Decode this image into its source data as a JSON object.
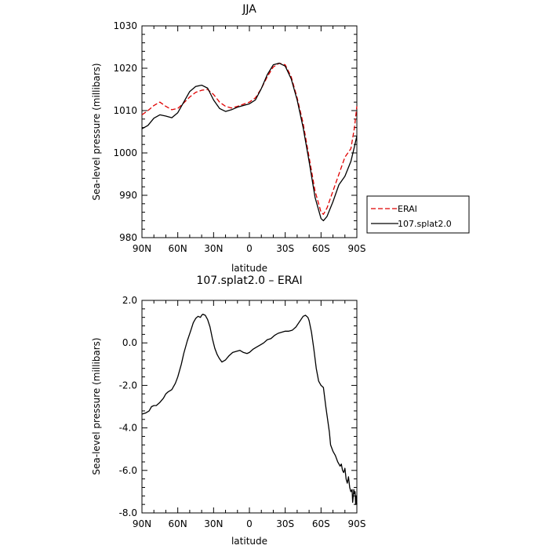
{
  "chart_data": [
    {
      "type": "line",
      "title": "JJA",
      "xlabel": "latitude",
      "ylabel": "Sea-level pressure (millibars)",
      "xlim": [
        -90,
        90
      ],
      "ylim": [
        980,
        1030
      ],
      "x_ticks": [
        -90,
        -60,
        -30,
        0,
        30,
        60,
        90
      ],
      "x_tick_labels": [
        "90N",
        "60N",
        "30N",
        "0",
        "30S",
        "60S",
        "90S"
      ],
      "y_ticks": [
        980,
        990,
        1000,
        1010,
        1020,
        1030
      ],
      "y_tick_labels": [
        "980",
        "990",
        "1000",
        "1010",
        "1020",
        "1030"
      ],
      "legend_position": "right",
      "series": [
        {
          "name": "ERAI",
          "color": "#e00000",
          "dash": "dashed",
          "x": [
            -90,
            -85,
            -80,
            -75,
            -70,
            -65,
            -60,
            -55,
            -50,
            -45,
            -40,
            -35,
            -30,
            -25,
            -20,
            -15,
            -10,
            -5,
            0,
            5,
            10,
            15,
            20,
            25,
            30,
            35,
            40,
            45,
            50,
            55,
            60,
            62,
            65,
            70,
            75,
            80,
            85,
            88,
            90
          ],
          "y": [
            1009,
            1010,
            1011.2,
            1012,
            1011,
            1010.2,
            1010.5,
            1011.8,
            1013.2,
            1014.3,
            1014.8,
            1015,
            1013.8,
            1012,
            1011,
            1010.6,
            1011,
            1011.5,
            1012,
            1013,
            1015.2,
            1018,
            1020.3,
            1021.2,
            1020.8,
            1018,
            1013,
            1007,
            999,
            991,
            986,
            985.5,
            987,
            991,
            995,
            999,
            1001,
            1006,
            1011
          ]
        },
        {
          "name": "107.splat2.0",
          "color": "#000000",
          "dash": "solid",
          "x": [
            -90,
            -85,
            -80,
            -75,
            -70,
            -65,
            -60,
            -55,
            -50,
            -45,
            -40,
            -35,
            -30,
            -25,
            -20,
            -15,
            -10,
            -5,
            0,
            5,
            10,
            15,
            20,
            25,
            30,
            35,
            40,
            45,
            50,
            55,
            60,
            62,
            65,
            70,
            75,
            80,
            85,
            88,
            90
          ],
          "y": [
            1005.7,
            1006.5,
            1008.2,
            1009,
            1008.7,
            1008.3,
            1009.5,
            1012,
            1014.5,
            1015.7,
            1016,
            1015.3,
            1012.5,
            1010.5,
            1009.8,
            1010.2,
            1010.8,
            1011.2,
            1011.6,
            1012.5,
            1015.2,
            1018.5,
            1020.8,
            1021.2,
            1020.5,
            1017.5,
            1012.5,
            1006,
            998,
            989.5,
            984.5,
            984,
            985,
            988.5,
            992.5,
            994.5,
            998,
            1001.5,
            1004
          ]
        }
      ]
    },
    {
      "type": "line",
      "title": "107.splat2.0 – ERAI",
      "xlabel": "latitude",
      "ylabel": "Sea-level pressure (millibars)",
      "xlim": [
        -90,
        90
      ],
      "ylim": [
        -8,
        2
      ],
      "x_ticks": [
        -90,
        -60,
        -30,
        0,
        30,
        60,
        90
      ],
      "x_tick_labels": [
        "90N",
        "60N",
        "30N",
        "0",
        "30S",
        "60S",
        "90S"
      ],
      "y_ticks": [
        -8,
        -6,
        -4,
        -2,
        0,
        2
      ],
      "y_tick_labels": [
        "-8.0",
        "-6.0",
        "-4.0",
        "-2.0",
        "0.0",
        "2.0"
      ],
      "series": [
        {
          "color": "#000000",
          "dash": "solid",
          "x": [
            -90,
            -87,
            -84,
            -82,
            -80,
            -78,
            -75,
            -72,
            -70,
            -68,
            -65,
            -62,
            -60,
            -57,
            -55,
            -52,
            -49,
            -47,
            -45,
            -43,
            -41,
            -40,
            -39,
            -37,
            -35,
            -33,
            -31,
            -29,
            -27,
            -25,
            -23,
            -20,
            -17,
            -14,
            -11,
            -8,
            -5,
            -2,
            0,
            3,
            6,
            9,
            12,
            15,
            18,
            21,
            24,
            27,
            30,
            33,
            36,
            39,
            42,
            45,
            47,
            49,
            50,
            52,
            54,
            56,
            58,
            60,
            62,
            64,
            65,
            67,
            68,
            70,
            72,
            74,
            76,
            77,
            78,
            79,
            80,
            81,
            82,
            83,
            84,
            85,
            86,
            86.5,
            87,
            87.5,
            88,
            88.5,
            89,
            89.5,
            90
          ],
          "y": [
            -3.35,
            -3.3,
            -3.2,
            -3.0,
            -2.95,
            -2.95,
            -2.8,
            -2.6,
            -2.4,
            -2.3,
            -2.2,
            -1.9,
            -1.6,
            -1.0,
            -0.5,
            0.1,
            0.6,
            0.95,
            1.15,
            1.25,
            1.2,
            1.3,
            1.35,
            1.3,
            1.1,
            0.75,
            0.2,
            -0.25,
            -0.55,
            -0.75,
            -0.9,
            -0.8,
            -0.6,
            -0.45,
            -0.4,
            -0.35,
            -0.45,
            -0.5,
            -0.45,
            -0.3,
            -0.2,
            -0.1,
            0.0,
            0.15,
            0.2,
            0.35,
            0.45,
            0.5,
            0.55,
            0.55,
            0.6,
            0.75,
            1.0,
            1.25,
            1.3,
            1.2,
            1.05,
            0.5,
            -0.3,
            -1.2,
            -1.8,
            -2.0,
            -2.1,
            -3.0,
            -3.4,
            -4.2,
            -4.8,
            -5.1,
            -5.3,
            -5.6,
            -5.8,
            -5.7,
            -6.0,
            -6.1,
            -5.9,
            -6.4,
            -6.6,
            -6.3,
            -6.8,
            -7.0,
            -6.9,
            -7.5,
            -7.2,
            -6.9,
            -7.1,
            -7.0,
            -7.6,
            -7.2,
            -7.6
          ]
        }
      ]
    }
  ]
}
